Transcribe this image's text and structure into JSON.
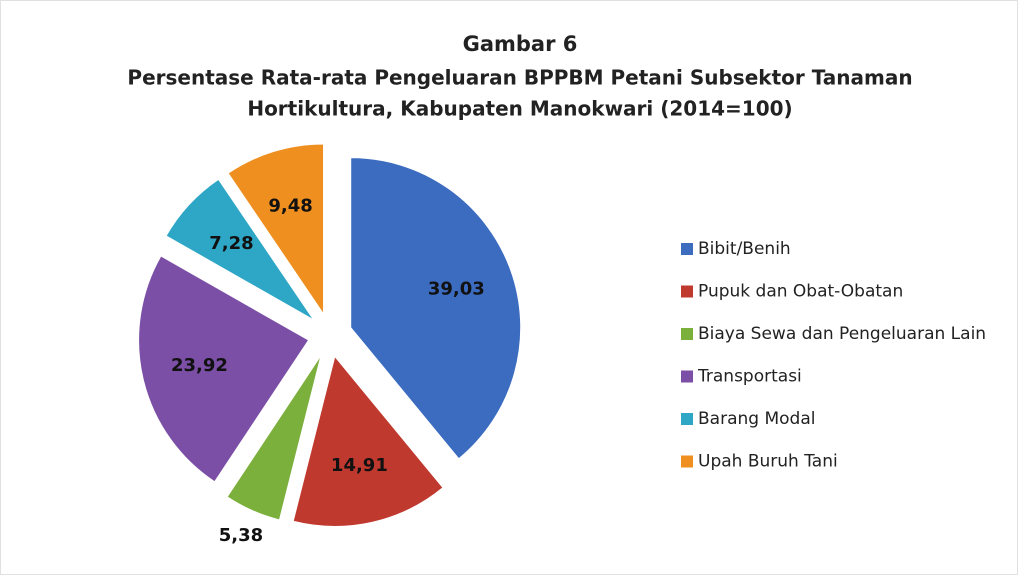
{
  "chart_data": {
    "type": "pie",
    "title": "Gambar 6",
    "subtitle": [
      "Persentase Rata-rata Pengeluaran BPPBM Petani Subsektor Tanaman",
      "Hortikultura, Kabupaten Manokwari (2014=100)"
    ],
    "categories": [
      "Bibit/Benih",
      "Pupuk dan Obat-Obatan",
      "Biaya Sewa dan Pengeluaran Lain",
      "Transportasi",
      "Barang Modal",
      "Upah Buruh Tani"
    ],
    "values": [
      39.03,
      14.91,
      5.38,
      23.92,
      7.28,
      9.48
    ],
    "value_labels": [
      "39,03",
      "14,91",
      "5,38",
      "23,92",
      "7,28",
      "9,48"
    ],
    "colors": [
      "#3b6cc0",
      "#c0392f",
      "#7cb03c",
      "#7b4fa6",
      "#2ea6c6",
      "#ef8f1f"
    ],
    "legend": "right"
  }
}
